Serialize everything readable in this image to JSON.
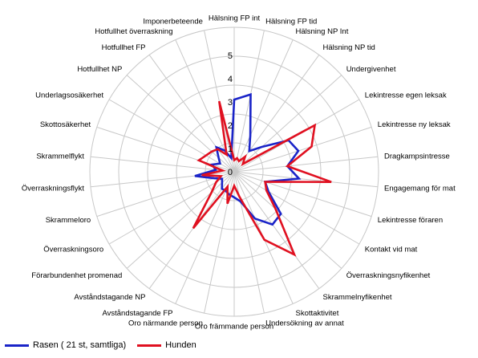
{
  "chart_data": {
    "type": "radar",
    "axes": [
      "Hälsning FP int",
      "Hälsning FP tid",
      "Hälsning NP Int",
      "Hälsning NP tid",
      "Undergivenhet",
      "Lekintresse egen leksak",
      "Lekintresse ny leksak",
      "Dragkampsintresse",
      "Engagemang för mat",
      "Lekintresse föraren",
      "Kontakt vid mat",
      "Överraskningsnyfikenhet",
      "Skrammelnyfikenhet",
      "Skottaktivitet",
      "Undersökning av annat",
      "Oro främmande person",
      "Oro närmande person",
      "Avståndstagande FP",
      "Avståndstagande NP",
      "Förarbundenhet promenad",
      "Överraskningsoro",
      "Skrammeloro",
      "Överraskningsflykt",
      "Skrammelflykt",
      "Skottosäkerhet",
      "Underlagsosäkerhet",
      "Hotfullhet NP",
      "Hotfullhet FP",
      "Hotfullhet överraskning",
      "Imponerbeteende"
    ],
    "ticks": [
      "0",
      "1",
      "2",
      "3",
      "4",
      "5"
    ],
    "range": [
      0,
      5
    ],
    "series": [
      {
        "name": "Rasen ( 21 st, samtliga)",
        "color": "#1a24c8",
        "values": [
          3.1,
          3.4,
          1.7,
          1.1,
          1.6,
          2.7,
          2.9,
          2.3,
          2.8,
          1.4,
          1.7,
          2.7,
          2.8,
          2.2,
          1.3,
          1.1,
          1.0,
          0.9,
          0.9,
          0.7,
          0.6,
          0.9,
          1.7,
          0.8,
          1.0,
          0.7,
          0.9,
          1.3,
          1.0,
          0.6
        ]
      },
      {
        "name": "Hunden",
        "color": "#e01020",
        "values": [
          0.5,
          0.6,
          0.5,
          0.8,
          0.5,
          4.0,
          3.5,
          2.3,
          4.2,
          1.4,
          1.6,
          2.4,
          4.4,
          3.2,
          1.1,
          0.6,
          1.4,
          0.7,
          3.0,
          1.3,
          0.9,
          0.6,
          1.4,
          0.5,
          1.6,
          1.4,
          1.3,
          1.2,
          0.8,
          3.1
        ]
      }
    ],
    "legend_position": "bottom-left"
  }
}
